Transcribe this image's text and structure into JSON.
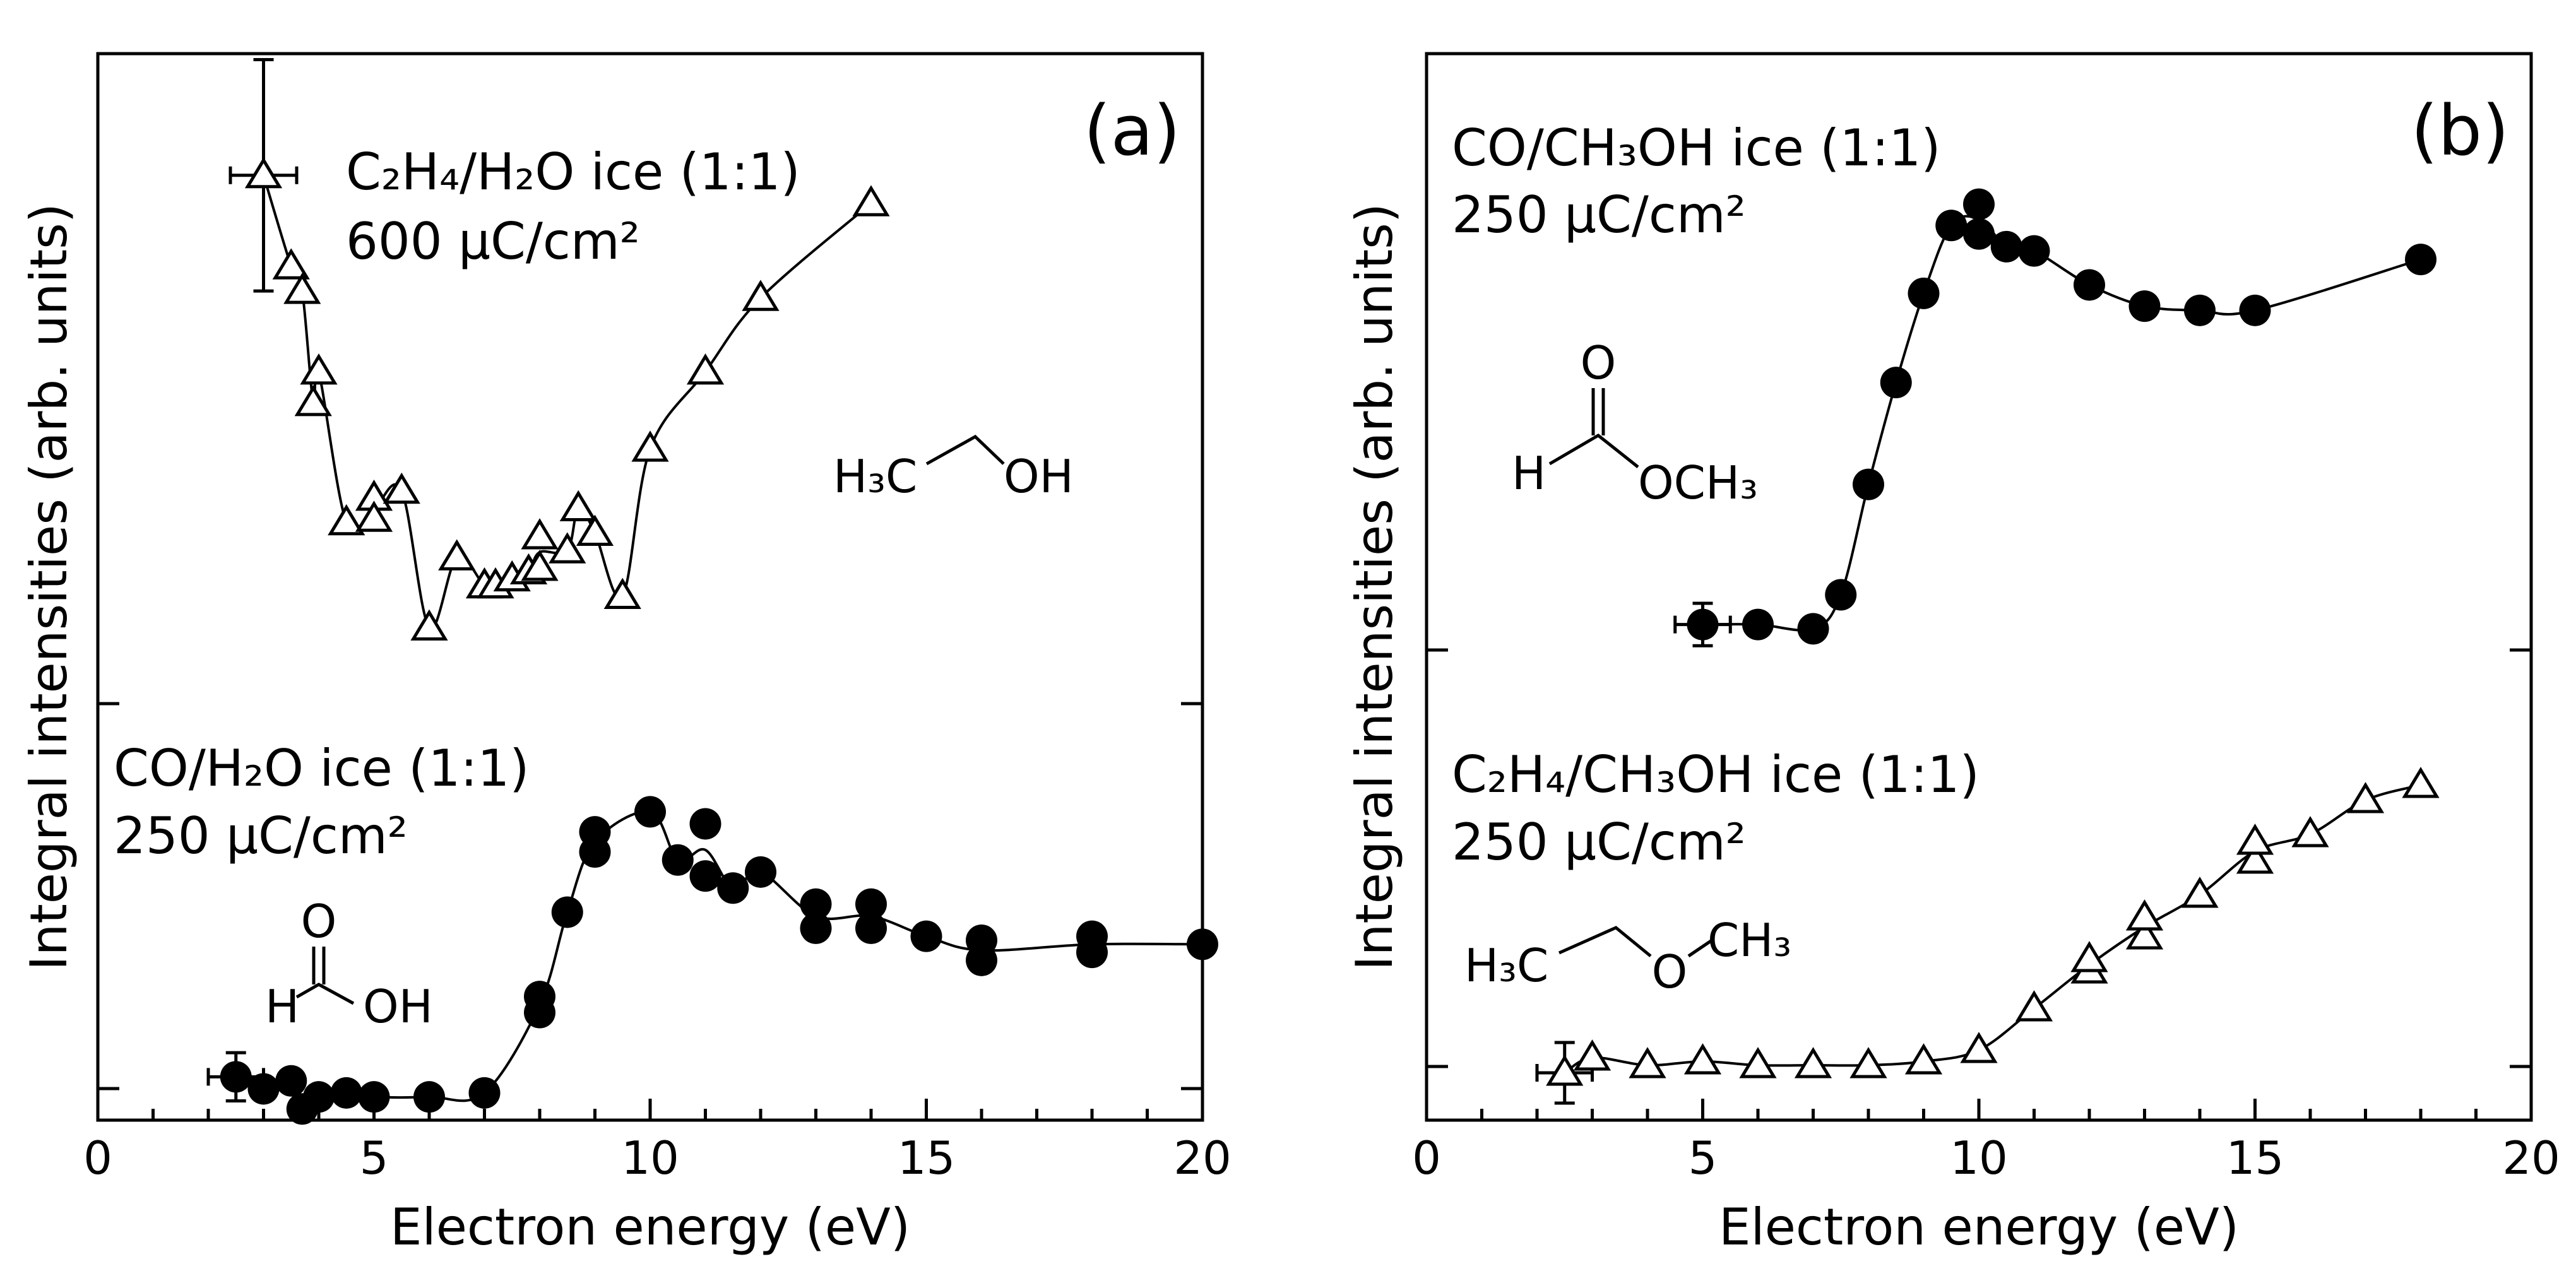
{
  "chart_data": [
    {
      "type": "scatter",
      "panel_label": "(a)",
      "xlabel": "Electron energy (eV)",
      "ylabel": "Integral intensities (arb. units)",
      "xlim": [
        0,
        20
      ],
      "x_ticks": [
        "0",
        "5",
        "10",
        "15",
        "20"
      ],
      "grid": false,
      "series": [
        {
          "marker": "triangle",
          "annotation": {
            "species": "C₂H₄/H₂O ice (1:1)",
            "dose": "600 µC/cm²"
          },
          "product": {
            "left": "H₃C",
            "right": "OH"
          },
          "points": [
            [
              3.0,
              2.9
            ],
            [
              3.5,
              2.64
            ],
            [
              3.7,
              2.57
            ],
            [
              4.0,
              2.34
            ],
            [
              3.9,
              2.25
            ],
            [
              4.5,
              1.91
            ],
            [
              5.0,
              1.98
            ],
            [
              5.0,
              1.92
            ],
            [
              5.5,
              2.0
            ],
            [
              6.0,
              1.61
            ],
            [
              6.5,
              1.81
            ],
            [
              7.0,
              1.73
            ],
            [
              7.2,
              1.73
            ],
            [
              7.5,
              1.75
            ],
            [
              7.8,
              1.77
            ],
            [
              8.0,
              1.87
            ],
            [
              8.0,
              1.78
            ],
            [
              8.5,
              1.83
            ],
            [
              8.7,
              1.95
            ],
            [
              9.0,
              1.88
            ],
            [
              9.5,
              1.7
            ],
            [
              10.0,
              2.12
            ],
            [
              11.0,
              2.34
            ],
            [
              12.0,
              2.55
            ],
            [
              14.0,
              2.82
            ]
          ],
          "error_bar": {
            "x": 3.0,
            "y": 2.9,
            "x_err": 0.6,
            "y_err": 0.33
          }
        },
        {
          "marker": "circle-filled",
          "annotation": {
            "species": "CO/H₂O ice (1:1)",
            "dose": "250 µC/cm²"
          },
          "product": {
            "top": "O",
            "left": "H",
            "right": "OH"
          },
          "points": [
            [
              2.5,
              0.05
            ],
            [
              3.0,
              0.02
            ],
            [
              3.5,
              0.04
            ],
            [
              3.7,
              -0.03
            ],
            [
              4.0,
              0.0
            ],
            [
              4.5,
              0.01
            ],
            [
              5.0,
              0.0
            ],
            [
              6.0,
              0.0
            ],
            [
              7.0,
              0.01
            ],
            [
              8.0,
              0.21
            ],
            [
              8.0,
              0.25
            ],
            [
              8.5,
              0.46
            ],
            [
              9.0,
              0.66
            ],
            [
              9.0,
              0.61
            ],
            [
              10.0,
              0.71
            ],
            [
              10.5,
              0.59
            ],
            [
              11.0,
              0.68
            ],
            [
              11.0,
              0.55
            ],
            [
              11.5,
              0.52
            ],
            [
              12.0,
              0.56
            ],
            [
              13.0,
              0.48
            ],
            [
              13.0,
              0.42
            ],
            [
              14.0,
              0.48
            ],
            [
              14.0,
              0.42
            ],
            [
              15.0,
              0.4
            ],
            [
              16.0,
              0.39
            ],
            [
              16.0,
              0.34
            ],
            [
              18.0,
              0.4
            ],
            [
              18.0,
              0.36
            ],
            [
              20.0,
              0.38
            ]
          ],
          "error_bar": {
            "x": 2.5,
            "y": 0.05,
            "x_err": 0.5,
            "y_err": 0.06
          }
        }
      ]
    },
    {
      "type": "scatter",
      "panel_label": "(b)",
      "xlabel": "Electron energy (eV)",
      "ylabel": "Integral intensities (arb. units)",
      "xlim": [
        0,
        20
      ],
      "x_ticks": [
        "0",
        "5",
        "10",
        "15",
        "20"
      ],
      "grid": false,
      "series": [
        {
          "marker": "circle-filled",
          "annotation": {
            "species": "CO/CH₃OH ice (1:1)",
            "dose": "250 µC/cm²"
          },
          "product": {
            "top": "O",
            "left": "H",
            "right": "OCH₃"
          },
          "points": [
            [
              5.0,
              1.06
            ],
            [
              6.0,
              1.06
            ],
            [
              7.0,
              1.05
            ],
            [
              7.5,
              1.13
            ],
            [
              8.0,
              1.39
            ],
            [
              8.5,
              1.63
            ],
            [
              9.0,
              1.84
            ],
            [
              9.5,
              2.0
            ],
            [
              10.0,
              2.05
            ],
            [
              10.0,
              1.98
            ],
            [
              10.5,
              1.95
            ],
            [
              11.0,
              1.94
            ],
            [
              12.0,
              1.86
            ],
            [
              13.0,
              1.81
            ],
            [
              14.0,
              1.8
            ],
            [
              15.0,
              1.8
            ],
            [
              18.0,
              1.92
            ]
          ],
          "error_bar": {
            "x": 5.0,
            "y": 1.06,
            "x_err": 0.5,
            "y_err": 0.05
          }
        },
        {
          "marker": "triangle",
          "annotation": {
            "species": "C₂H₄/CH₃OH ice (1:1)",
            "dose": "250 µC/cm²"
          },
          "product": {
            "left": "H₃C",
            "middle": "O",
            "right": "CH₃"
          },
          "points": [
            [
              2.5,
              0.0
            ],
            [
              3.0,
              0.04
            ],
            [
              4.0,
              0.02
            ],
            [
              5.0,
              0.03
            ],
            [
              6.0,
              0.02
            ],
            [
              7.0,
              0.02
            ],
            [
              8.0,
              0.02
            ],
            [
              9.0,
              0.03
            ],
            [
              10.0,
              0.06
            ],
            [
              11.0,
              0.17
            ],
            [
              12.0,
              0.27
            ],
            [
              12.0,
              0.3
            ],
            [
              13.0,
              0.36
            ],
            [
              13.0,
              0.41
            ],
            [
              14.0,
              0.47
            ],
            [
              15.0,
              0.56
            ],
            [
              15.0,
              0.61
            ],
            [
              16.0,
              0.63
            ],
            [
              17.0,
              0.72
            ],
            [
              18.0,
              0.76
            ]
          ],
          "error_bar": {
            "x": 2.5,
            "y": 0.0,
            "x_err": 0.5,
            "y_err": 0.08
          }
        }
      ]
    }
  ]
}
